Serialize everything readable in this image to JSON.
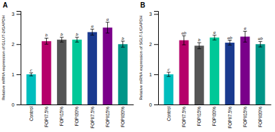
{
  "chart_data": [
    {
      "type": "bar",
      "title": "A",
      "ylabel": "Relative mRNA expression of GLUT-2/GAPDH",
      "categories": [
        "Control",
        "FOPI7.5%",
        "FOPI15%",
        "FOPI30%",
        "FOPII7.5%",
        "FOPII15%",
        "FOPII30%"
      ],
      "values": [
        1.0,
        2.1,
        2.15,
        2.15,
        2.4,
        2.55,
        2.0
      ],
      "errors": [
        0.05,
        0.1,
        0.08,
        0.08,
        0.1,
        0.18,
        0.1
      ],
      "annotations": [
        "c",
        "b",
        "b",
        "b",
        "a",
        "a",
        "b"
      ],
      "colors": [
        "#00BEBE",
        "#B5006A",
        "#555555",
        "#00C898",
        "#1A3A8F",
        "#7A008A",
        "#009688"
      ],
      "ylim": [
        0,
        3.1
      ],
      "yticks": [
        0,
        1,
        2,
        3
      ],
      "grid": false
    },
    {
      "type": "bar",
      "title": "B",
      "ylabel": "Relative mRNA expression of SGLT-1/GAPDH",
      "categories": [
        "Control",
        "FOPI7.5%",
        "FOPI15%",
        "FOPI30%",
        "FOPII7.5%",
        "FOPII15%",
        "FOPII30%"
      ],
      "values": [
        1.0,
        2.13,
        1.95,
        2.22,
        2.05,
        2.25,
        2.0
      ],
      "errors": [
        0.07,
        0.15,
        0.1,
        0.08,
        0.08,
        0.18,
        0.09
      ],
      "annotations": [
        "c",
        "ab",
        "b",
        "a",
        "ab",
        "a",
        "ab"
      ],
      "colors": [
        "#00BEBE",
        "#B5006A",
        "#555555",
        "#00C898",
        "#1A3A8F",
        "#7A008A",
        "#009688"
      ],
      "ylim": [
        0,
        3.1
      ],
      "yticks": [
        0,
        1,
        2,
        3
      ],
      "grid": false
    }
  ]
}
